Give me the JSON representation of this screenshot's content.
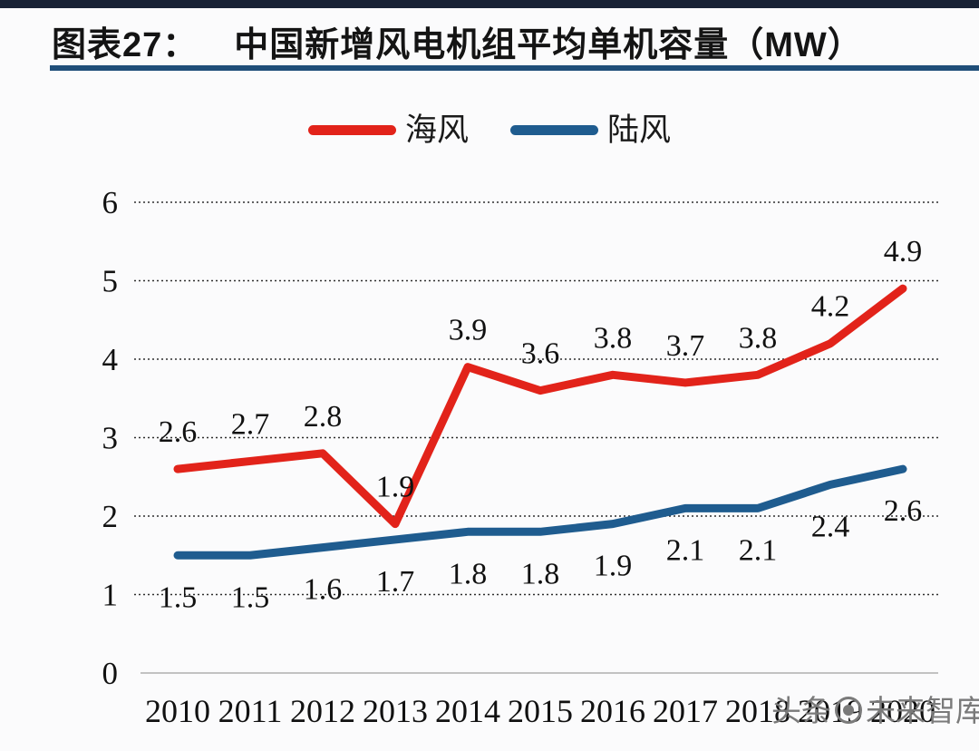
{
  "header": {
    "figure_label": "图表27：",
    "title": "中国新增风电机组平均单机容量（MW）"
  },
  "legend": [
    {
      "label": "海风",
      "color": "#e2231a"
    },
    {
      "label": "陆风",
      "color": "#1f5c8f"
    }
  ],
  "watermark": {
    "text_left": "头条",
    "logo": "circle-logo",
    "text_right": "未来智库"
  },
  "chart_data": {
    "type": "line",
    "title": "中国新增风电机组平均单机容量（MW）",
    "x": [
      2010,
      2011,
      2012,
      2013,
      2014,
      2015,
      2016,
      2017,
      2018,
      2019,
      2020
    ],
    "series": [
      {
        "name": "海风",
        "color": "#e2231a",
        "values": [
          2.6,
          2.7,
          2.8,
          1.9,
          3.9,
          3.6,
          3.8,
          3.7,
          3.8,
          4.2,
          4.9
        ],
        "label_side": "above"
      },
      {
        "name": "陆风",
        "color": "#1f5c8f",
        "values": [
          1.5,
          1.5,
          1.6,
          1.7,
          1.8,
          1.8,
          1.9,
          2.1,
          2.1,
          2.4,
          2.6
        ],
        "label_side": "below"
      }
    ],
    "xlabel": "",
    "ylabel": "",
    "ylim": [
      0,
      6
    ],
    "yticks": [
      0,
      1,
      2,
      3,
      4,
      5,
      6
    ],
    "grid": "horizontal-dotted",
    "legend_position": "top-center",
    "colors": {
      "grid_dotted": "#2e2e2e",
      "baseline": "#c2c2c2",
      "text": "#111111",
      "header_bar": "#1a2336",
      "title_rule": "#1f4e79"
    }
  }
}
